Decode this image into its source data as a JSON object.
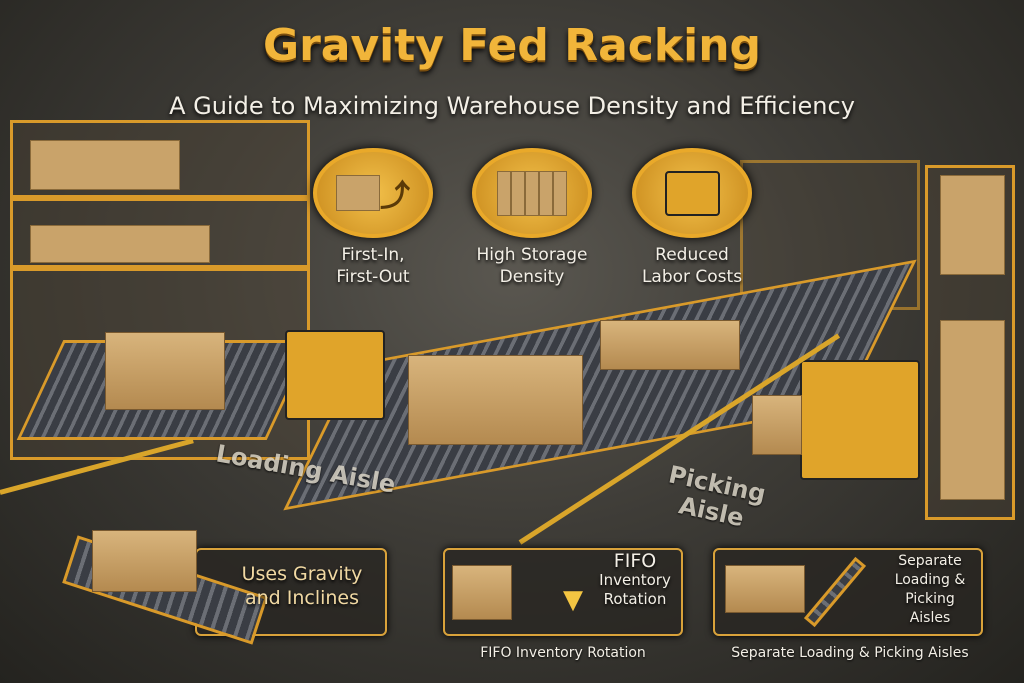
{
  "title": "Gravity Fed Racking",
  "subtitle": "A Guide to Maximizing Warehouse Density and Efficiency",
  "features": [
    {
      "icon": "box-arrow-icon",
      "line1": "First-In,",
      "line2": "First-Out"
    },
    {
      "icon": "stacked-boxes-icon",
      "line1": "High Storage",
      "line2": "Density"
    },
    {
      "icon": "forklift-icon",
      "line1": "Reduced",
      "line2": "Labor Costs"
    }
  ],
  "floor": {
    "loading": "Loading Aisle",
    "picking_line1": "Picking",
    "picking_line2": "Aisle"
  },
  "panels": [
    {
      "line1": "Uses Gravity",
      "line2": "and Inclines"
    },
    {
      "line1": "FIFO",
      "line2": "Inventory",
      "line3": "Rotation",
      "caption": "FIFO Inventory Rotation"
    },
    {
      "line1": "Separate",
      "line2": "Loading &",
      "line3": "Picking",
      "line4": "Aisles",
      "caption": "Separate Loading & Picking Aisles"
    }
  ],
  "colors": {
    "accent": "#e9a92a",
    "background": "#3e3c37"
  }
}
